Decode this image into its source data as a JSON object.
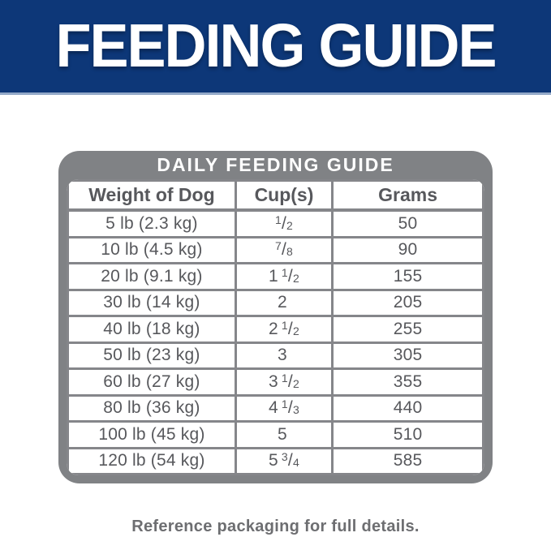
{
  "banner": {
    "title": "FEEDING GUIDE",
    "bg_color": "#0d3778",
    "underline_color": "#93a9c8",
    "text_color": "#ffffff"
  },
  "table": {
    "title": "DAILY FEEDING GUIDE",
    "frame_color": "#808285",
    "text_color": "#57585c",
    "columns": [
      "Weight of Dog",
      "Cup(s)",
      "Grams"
    ],
    "rows": [
      {
        "weight": "5 lb (2.3 kg)",
        "cup_whole": "",
        "cup_num": "1",
        "cup_den": "2",
        "grams": "50"
      },
      {
        "weight": "10 lb (4.5 kg)",
        "cup_whole": "",
        "cup_num": "7",
        "cup_den": "8",
        "grams": "90"
      },
      {
        "weight": "20 lb (9.1 kg)",
        "cup_whole": "1",
        "cup_num": "1",
        "cup_den": "2",
        "grams": "155"
      },
      {
        "weight": "30 lb (14 kg)",
        "cup_whole": "2",
        "cup_num": "",
        "cup_den": "",
        "grams": "205"
      },
      {
        "weight": "40 lb (18 kg)",
        "cup_whole": "2",
        "cup_num": "1",
        "cup_den": "2",
        "grams": "255"
      },
      {
        "weight": "50 lb (23 kg)",
        "cup_whole": "3",
        "cup_num": "",
        "cup_den": "",
        "grams": "305"
      },
      {
        "weight": "60 lb (27 kg)",
        "cup_whole": "3",
        "cup_num": "1",
        "cup_den": "2",
        "grams": "355"
      },
      {
        "weight": "80 lb (36 kg)",
        "cup_whole": "4",
        "cup_num": "1",
        "cup_den": "3",
        "grams": "440"
      },
      {
        "weight": "100 lb (45 kg)",
        "cup_whole": "5",
        "cup_num": "",
        "cup_den": "",
        "grams": "510"
      },
      {
        "weight": "120 lb (54 kg)",
        "cup_whole": "5",
        "cup_num": "3",
        "cup_den": "4",
        "grams": "585"
      }
    ]
  },
  "footer": {
    "note": "Reference packaging for full details."
  }
}
